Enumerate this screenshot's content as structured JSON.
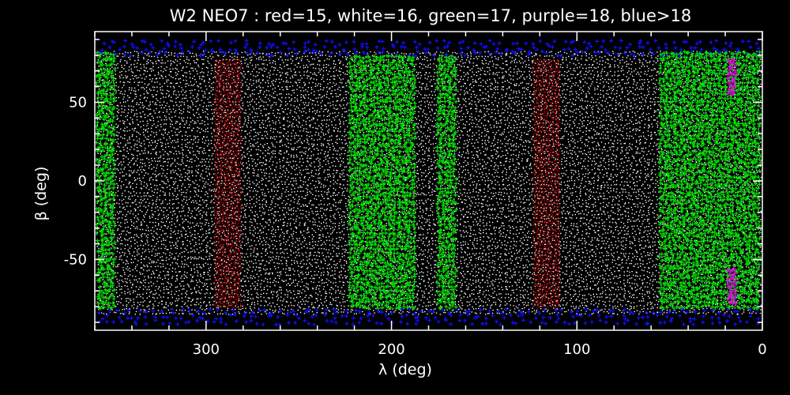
{
  "chart_data": {
    "type": "scatter",
    "title": "W2 NEO7 : red=15, white=16, green=17, purple=18, blue>18",
    "xlabel": "λ (deg)",
    "ylabel": "β (deg)",
    "xlim": [
      360,
      0
    ],
    "ylim": [
      -95,
      95
    ],
    "x_ticks": [
      {
        "value": 300,
        "label": "300"
      },
      {
        "value": 200,
        "label": "200"
      },
      {
        "value": 100,
        "label": "100"
      },
      {
        "value": 0,
        "label": "0"
      }
    ],
    "y_ticks": [
      {
        "value": 50,
        "label": "50"
      },
      {
        "value": 0,
        "label": "0"
      },
      {
        "value": -50,
        "label": "-50"
      }
    ],
    "grid": false,
    "legend": "none",
    "series": [
      {
        "name": "red=15",
        "color": "#e00000",
        "marker": "dot",
        "bands": [
          {
            "lambda_min": 282,
            "lambda_max": 296,
            "beta_min": -80,
            "beta_max": 78
          },
          {
            "lambda_min": 110,
            "lambda_max": 124,
            "beta_min": -80,
            "beta_max": 78
          }
        ]
      },
      {
        "name": "white=16",
        "color": "#ffffff",
        "marker": "dot",
        "bands": [
          {
            "lambda_min": 0,
            "lambda_max": 360,
            "beta_min": -84,
            "beta_max": 84
          }
        ]
      },
      {
        "name": "green=17",
        "color": "#00e000",
        "marker": "plus",
        "bands": [
          {
            "lambda_min": 350,
            "lambda_max": 360,
            "beta_min": -80,
            "beta_max": 82
          },
          {
            "lambda_min": 188,
            "lambda_max": 223,
            "beta_min": -80,
            "beta_max": 80
          },
          {
            "lambda_min": 166,
            "lambda_max": 176,
            "beta_min": -80,
            "beta_max": 80
          },
          {
            "lambda_min": 2,
            "lambda_max": 55,
            "beta_min": -80,
            "beta_max": 82
          }
        ]
      },
      {
        "name": "purple=18",
        "color": "#e000e0",
        "marker": "plus",
        "bands": [
          {
            "lambda_min": 15,
            "lambda_max": 19,
            "beta_min": -78,
            "beta_max": -55
          },
          {
            "lambda_min": 15,
            "lambda_max": 19,
            "beta_min": 55,
            "beta_max": 78
          }
        ]
      },
      {
        "name": "blue>18",
        "color": "#1010ff",
        "marker": "plus",
        "bands": [
          {
            "lambda_min": 0,
            "lambda_max": 360,
            "beta_min": -90,
            "beta_max": -83
          },
          {
            "lambda_min": 0,
            "lambda_max": 360,
            "beta_min": 81,
            "beta_max": 88
          }
        ]
      }
    ]
  }
}
